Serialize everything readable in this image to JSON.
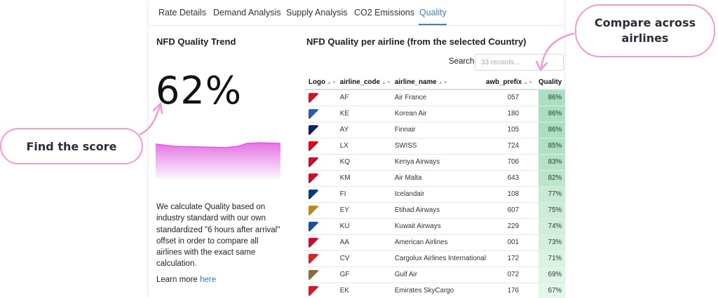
{
  "tabs": [
    {
      "label": "Rate Details",
      "active": false
    },
    {
      "label": "Demand Analysis",
      "active": false
    },
    {
      "label": "Supply Analysis",
      "active": false
    },
    {
      "label": "CO2 Emissions",
      "active": false
    },
    {
      "label": "Quality",
      "active": true
    }
  ],
  "left": {
    "title": "NFD Quality Trend",
    "score": "62%",
    "description": "We calculate Quality based on industry standard with our own standardized \"6 hours after arrival\" offset in order to compare all airlines with the exact same calculation.",
    "learn_more": "Learn more",
    "learn_more_link": "here",
    "trend_color": "#e36be3"
  },
  "right": {
    "title": "NFD Quality per airline (from the selected Country)",
    "search_label": "Search",
    "search_placeholder": "33 records...",
    "columns": [
      "Logo",
      "airline_code",
      "airline_name",
      "awb_prefix",
      "Quality"
    ],
    "rows": [
      {
        "code": "AF",
        "name": "Air France",
        "prefix": "057",
        "quality": "86%",
        "logo_color": "#d0112b",
        "q_color": "#a8e0c0"
      },
      {
        "code": "KE",
        "name": "Korean Air",
        "prefix": "180",
        "quality": "86%",
        "logo_color": "#2a5caa",
        "q_color": "#a8e0c0"
      },
      {
        "code": "AY",
        "name": "Finnair",
        "prefix": "105",
        "quality": "86%",
        "logo_color": "#0b1f66",
        "q_color": "#a8e0c0"
      },
      {
        "code": "LX",
        "name": "SWISS",
        "prefix": "724",
        "quality": "85%",
        "logo_color": "#e2001a",
        "q_color": "#aee2c4"
      },
      {
        "code": "KQ",
        "name": "Kenya Airways",
        "prefix": "706",
        "quality": "83%",
        "logo_color": "#c8102e",
        "q_color": "#b4e4c8"
      },
      {
        "code": "KM",
        "name": "Air Malta",
        "prefix": "643",
        "quality": "82%",
        "logo_color": "#c8102e",
        "q_color": "#b8e6cb"
      },
      {
        "code": "FI",
        "name": "Icelandair",
        "prefix": "108",
        "quality": "77%",
        "logo_color": "#0a3a7a",
        "q_color": "#c6ecd5"
      },
      {
        "code": "EY",
        "name": "Etihad Airways",
        "prefix": "607",
        "quality": "75%",
        "logo_color": "#bd8b13",
        "q_color": "#cceed9"
      },
      {
        "code": "KU",
        "name": "Kuwait Airways",
        "prefix": "229",
        "quality": "74%",
        "logo_color": "#1b4f9c",
        "q_color": "#cfefdc"
      },
      {
        "code": "AA",
        "name": "American Airlines",
        "prefix": "001",
        "quality": "73%",
        "logo_color": "#c8102e",
        "q_color": "#d3f0df"
      },
      {
        "code": "CV",
        "name": "Cargolux Airlines International",
        "prefix": "172",
        "quality": "71%",
        "logo_color": "#d7261e",
        "q_color": "#d9f3e3"
      },
      {
        "code": "GF",
        "name": "Gulf Air",
        "prefix": "072",
        "quality": "69%",
        "logo_color": "#8a6d3b",
        "q_color": "#dff5e8"
      },
      {
        "code": "EK",
        "name": "Emirates SkyCargo",
        "prefix": "176",
        "quality": "67%",
        "logo_color": "#d71921",
        "q_color": "#e4f7eb"
      }
    ]
  },
  "callouts": {
    "left": "Find the score",
    "right": "Compare across airlines",
    "color": "#f59ad0"
  }
}
